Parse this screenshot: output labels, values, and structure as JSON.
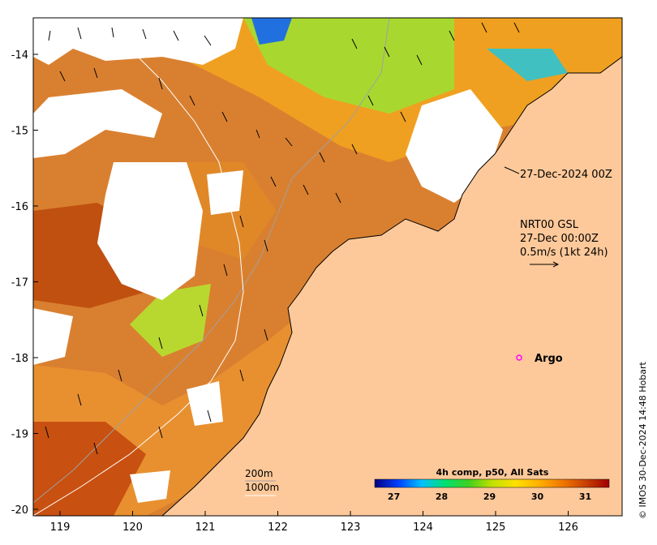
{
  "map": {
    "x_ticks": [
      "119",
      "120",
      "121",
      "122",
      "123",
      "124",
      "125",
      "126"
    ],
    "y_ticks": [
      "-14",
      "-15",
      "-16",
      "-17",
      "-18",
      "-19",
      "-20"
    ],
    "timestamp_label": "27-Dec-2024 00Z",
    "current_info": {
      "line1": "NRT00 GSL",
      "line2": "27-Dec 00:00Z",
      "line3": "0.5m/s (1kt 24h)"
    },
    "argo_label": "Argo",
    "isobaths": {
      "line1": "200m",
      "line2": "1000m"
    },
    "colorbar": {
      "title": "4h comp, p50, All Sats",
      "ticks": [
        "27",
        "28",
        "29",
        "30",
        "31"
      ],
      "range": [
        26.6,
        31.5
      ],
      "colors": [
        "#00007f",
        "#0040ff",
        "#00c0ff",
        "#00e070",
        "#40d020",
        "#c0e000",
        "#ffe000",
        "#ffb000",
        "#f07800",
        "#c84000",
        "#a00000"
      ]
    },
    "credit": "© IMOS 30-Dec-2024 14:48 Hobart",
    "colors": {
      "land": "#fec99a",
      "ocean_warm": "#d2691e",
      "argo_marker": "#ff00ff"
    }
  }
}
